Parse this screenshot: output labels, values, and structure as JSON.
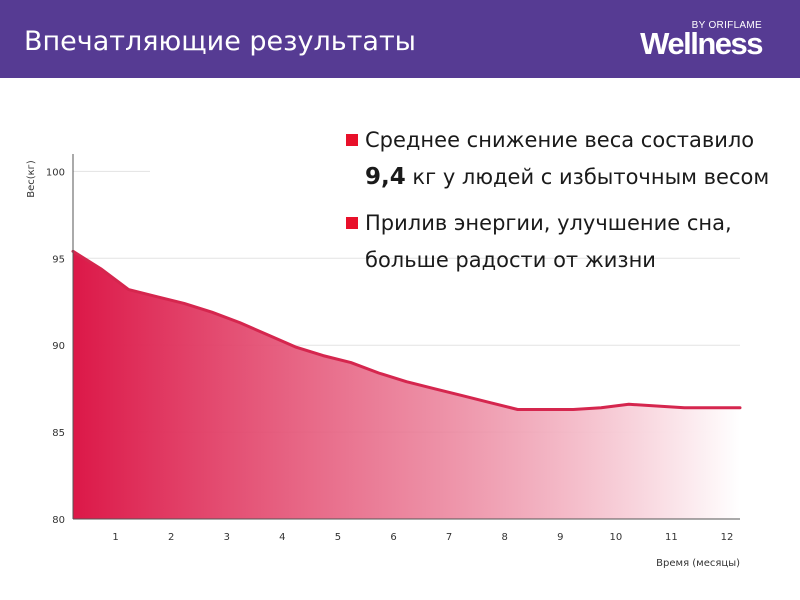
{
  "header": {
    "title": "Впечатляющие результаты",
    "logo_small": "BY ORIFLAME",
    "logo_main": "Wellness",
    "background_color": "#563b93"
  },
  "bullets": [
    {
      "parts": [
        {
          "text": "Среднее снижение веса составило ",
          "bold": false
        },
        {
          "text": "9,4",
          "bold": true
        },
        {
          "text": " кг у людей с избыточным весом",
          "bold": false
        }
      ]
    },
    {
      "parts": [
        {
          "text": "Прилив энергии, улучшение сна, больше радости от жизни",
          "bold": false
        }
      ]
    }
  ],
  "bullet_color": "#e8102a",
  "chart_data": {
    "type": "area",
    "title": "",
    "xlabel": "Время (месяцы)",
    "ylabel": "Вес(кг)",
    "xlim": [
      0,
      12
    ],
    "ylim": [
      80,
      101
    ],
    "x_ticks": [
      1,
      2,
      3,
      4,
      5,
      6,
      7,
      8,
      9,
      10,
      11,
      12
    ],
    "y_ticks": [
      80,
      85,
      90,
      95,
      100
    ],
    "series": [
      {
        "name": "Вес",
        "x": [
          0,
          0.5,
          1,
          1.5,
          2,
          2.5,
          3,
          3.5,
          4,
          4.5,
          5,
          5.5,
          6,
          6.5,
          7,
          7.5,
          8,
          8.5,
          9,
          9.5,
          10,
          10.5,
          11,
          11.5,
          12
        ],
        "values": [
          95.4,
          94.4,
          93.2,
          92.8,
          92.4,
          91.9,
          91.3,
          90.6,
          89.9,
          89.4,
          89.0,
          88.4,
          87.9,
          87.5,
          87.1,
          86.7,
          86.3,
          86.3,
          86.3,
          86.4,
          86.6,
          86.5,
          86.4,
          86.4,
          86.4
        ]
      }
    ],
    "line_color": "#d5264e",
    "fill_color_start": "#dc1848",
    "fill_color_end": "#ffffff"
  }
}
